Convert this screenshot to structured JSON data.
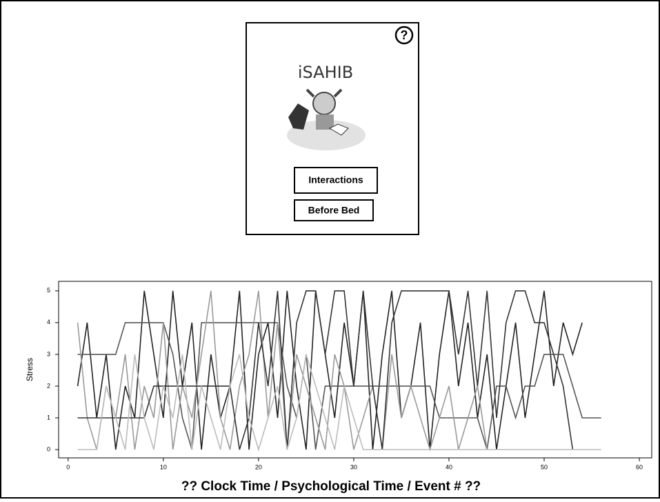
{
  "app": {
    "title": "iSAHIB",
    "help_icon": "?",
    "buttons": [
      "Interactions",
      "Before Bed"
    ]
  },
  "chart_data": {
    "type": "line",
    "ylabel": "Stress",
    "xlabel": "?? Clock Time /  Psychological Time / Event # ??",
    "xlim": [
      -1,
      61.3
    ],
    "xticks": [
      0,
      10,
      20,
      30,
      40,
      50,
      60
    ],
    "ylim": [
      -0.26,
      5.3
    ],
    "yticks": [
      0,
      1,
      2,
      3,
      4,
      5
    ],
    "x": [
      1,
      2,
      3,
      4,
      5,
      6,
      7,
      8,
      9,
      10,
      11,
      12,
      13,
      14,
      15,
      16,
      17,
      18,
      19,
      20,
      21,
      22,
      23,
      24,
      25,
      26,
      27,
      28,
      29,
      30,
      31,
      32,
      33,
      34,
      35,
      36,
      37,
      38,
      39,
      40,
      41,
      42,
      43,
      44,
      45,
      46,
      47,
      48,
      49,
      50,
      51,
      52,
      53,
      54,
      55,
      56
    ],
    "series": [
      {
        "color": "#222222",
        "values": [
          2,
          4,
          1,
          3,
          0,
          2,
          1,
          5,
          3,
          1,
          5,
          2,
          4,
          0,
          3,
          1,
          2,
          5,
          0,
          3,
          4,
          1,
          5,
          2,
          0,
          5,
          3,
          1,
          4,
          2,
          5,
          0,
          3,
          5,
          1,
          2,
          4,
          0,
          3,
          5,
          2,
          4,
          1,
          3,
          0,
          2,
          4,
          1,
          3,
          5,
          2,
          4,
          3,
          4,
          null,
          null
        ]
      },
      {
        "color": "#555555",
        "values": [
          3,
          3,
          3,
          3,
          3,
          4,
          4,
          4,
          4,
          4,
          3,
          1,
          0,
          4,
          4,
          4,
          4,
          4,
          4,
          4,
          4,
          4,
          2,
          1,
          3,
          0,
          2,
          2,
          2,
          2,
          2,
          2,
          2,
          2,
          2,
          2,
          2,
          2,
          1,
          1,
          1,
          1,
          1,
          0,
          2,
          2,
          1,
          2,
          2,
          3,
          3,
          3,
          2,
          1,
          1,
          1
        ]
      },
      {
        "color": "#999999",
        "values": [
          4,
          1,
          0,
          2,
          1,
          3,
          0,
          2,
          1,
          4,
          0,
          2,
          1,
          3,
          5,
          1,
          0,
          2,
          3,
          5,
          1,
          4,
          0,
          3,
          2,
          1,
          0,
          3,
          2,
          0,
          1,
          2,
          0,
          3,
          1,
          2,
          1,
          0,
          1,
          2,
          0,
          1,
          2,
          0,
          null,
          null,
          null,
          null,
          null,
          null,
          null,
          null,
          null,
          null,
          null,
          null
        ]
      },
      {
        "color": "#333333",
        "values": [
          1,
          1,
          1,
          1,
          1,
          1,
          1,
          1,
          2,
          2,
          2,
          2,
          2,
          2,
          2,
          2,
          2,
          0,
          1,
          4,
          2,
          5,
          0,
          4,
          5,
          5,
          3,
          5,
          5,
          2,
          5,
          2,
          0,
          4,
          5,
          5,
          5,
          5,
          5,
          5,
          3,
          5,
          2,
          5,
          1,
          4,
          5,
          5,
          4,
          4,
          3,
          2,
          0,
          null,
          null,
          null
        ]
      },
      {
        "color": "#bbbbbb",
        "values": [
          0,
          0,
          0,
          2,
          1,
          0,
          3,
          1,
          0,
          2,
          1,
          3,
          0,
          2,
          1,
          0,
          2,
          3,
          1,
          0,
          1,
          2,
          0,
          1,
          3,
          2,
          1,
          0,
          2,
          1,
          0,
          0,
          0,
          0,
          0,
          0,
          0,
          0,
          0,
          0,
          0,
          0,
          0,
          0,
          0,
          0,
          0,
          0,
          0,
          0,
          0,
          0,
          0,
          0,
          0,
          0
        ]
      }
    ]
  }
}
